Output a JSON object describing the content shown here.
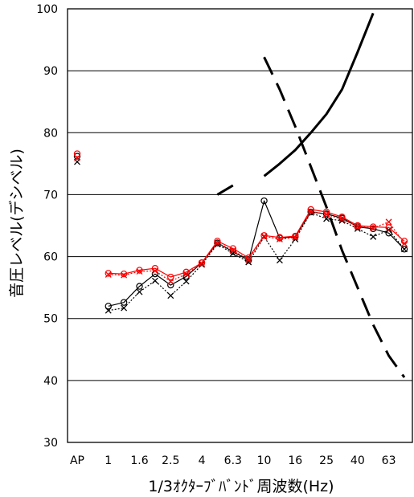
{
  "chart_data": {
    "type": "line",
    "title": "",
    "xlabel": "1/3ｵｸﾀｰﾌﾞﾊﾞﾝﾄﾞ周波数(Hz)",
    "ylabel": "音圧レベル(デシベル)",
    "ylim": [
      30,
      100
    ],
    "yticks": [
      30,
      40,
      50,
      60,
      70,
      80,
      90,
      100
    ],
    "grid": "horizontal",
    "legend": "none",
    "categories": [
      "AP",
      "0.8",
      "1",
      "1.25",
      "1.6",
      "2",
      "2.5",
      "3.15",
      "4",
      "5",
      "6.3",
      "8",
      "10",
      "12.5",
      "16",
      "20",
      "25",
      "31.5",
      "40",
      "50",
      "63",
      "80"
    ],
    "xtick_labels": [
      "AP",
      "",
      "1",
      "",
      "1.6",
      "",
      "2.5",
      "",
      "4",
      "",
      "6.3",
      "",
      "10",
      "",
      "16",
      "",
      "25",
      "",
      "40",
      "",
      "63",
      ""
    ],
    "series": [
      {
        "color": "#000000",
        "dash": "solid",
        "marker": "circle",
        "ap": 76.2,
        "values": [
          null,
          null,
          52.0,
          52.6,
          55.2,
          57.2,
          55.4,
          56.8,
          59.0,
          62.2,
          60.8,
          59.4,
          69.0,
          63.0,
          63.2,
          67.2,
          66.9,
          66.2,
          64.8,
          64.5,
          63.8,
          61.2
        ]
      },
      {
        "color": "#000000",
        "dash": "dotted",
        "marker": "x",
        "ap": 75.3,
        "values": [
          null,
          null,
          51.3,
          51.7,
          54.3,
          56.1,
          53.7,
          56.0,
          58.7,
          62.0,
          60.5,
          59.1,
          63.2,
          59.4,
          62.8,
          67.1,
          66.1,
          65.8,
          64.5,
          63.2,
          64.3,
          61.2
        ]
      },
      {
        "color": "#ff0000",
        "dash": "solid",
        "marker": "circle",
        "ap": 76.6,
        "values": [
          null,
          null,
          57.3,
          57.2,
          57.8,
          58.1,
          56.7,
          57.5,
          59.0,
          62.5,
          61.3,
          59.8,
          63.4,
          63.1,
          63.3,
          67.6,
          67.2,
          66.4,
          65.0,
          64.8,
          64.7,
          62.5
        ]
      },
      {
        "color": "#ff0000",
        "dash": "dotted",
        "marker": "x",
        "ap": 75.9,
        "values": [
          null,
          null,
          57.1,
          57.0,
          57.6,
          57.7,
          56.0,
          57.2,
          58.9,
          62.2,
          61.0,
          59.5,
          63.3,
          62.8,
          63.1,
          67.3,
          66.8,
          66.0,
          64.9,
          64.6,
          65.6,
          62.1
        ]
      },
      {
        "color": "#000000",
        "dash": "solid",
        "marker": "none",
        "width": "thick",
        "values": [
          null,
          null,
          null,
          null,
          null,
          null,
          null,
          null,
          null,
          70.0,
          71.5,
          null,
          73.0,
          75.0,
          77.2,
          80.0,
          83.0,
          87.0,
          93.0,
          99.3,
          null,
          null
        ]
      },
      {
        "color": "#000000",
        "dash": "long-dash",
        "marker": "none",
        "width": "thick",
        "values": [
          null,
          null,
          null,
          null,
          null,
          null,
          null,
          null,
          null,
          null,
          null,
          null,
          92.2,
          87.0,
          81.0,
          74.5,
          68.0,
          61.0,
          55.0,
          49.0,
          44.0,
          40.5
        ]
      }
    ]
  }
}
